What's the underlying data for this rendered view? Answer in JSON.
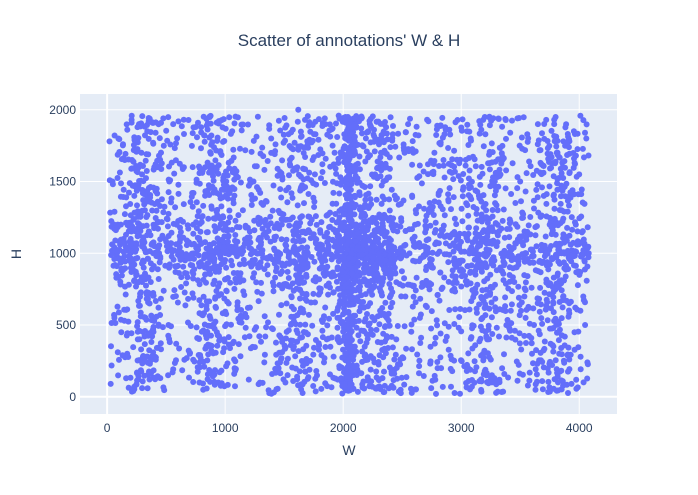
{
  "chart_data": {
    "type": "scatter",
    "title": "Scatter of annotations' W & H",
    "xlabel": "W",
    "ylabel": "H",
    "xlim": [
      -230,
      4320
    ],
    "ylim": [
      -120,
      2110
    ],
    "xticks": [
      0,
      1000,
      2000,
      3000,
      4000
    ],
    "xtick_labels": [
      "0",
      "1000",
      "2000",
      "3000",
      "4000"
    ],
    "yticks": [
      0,
      500,
      1000,
      1500,
      2000
    ],
    "ytick_labels": [
      "0",
      "500",
      "1000",
      "1500",
      "2000"
    ],
    "grid": true,
    "legend": "none",
    "marker_color": "#636efa",
    "plot_bg": "#e5ecf6",
    "grid_color": "#ffffff",
    "point_count": 4000,
    "points": {
      "x": [
        20,
        45,
        60,
        80,
        95,
        120,
        150,
        170,
        200,
        230,
        250,
        270,
        285,
        295,
        300,
        310,
        320,
        340,
        360,
        390,
        420,
        450,
        480,
        500,
        520,
        560,
        600,
        650,
        700,
        750,
        800,
        830,
        870,
        900,
        930,
        960,
        1000,
        1030,
        1060,
        1100,
        1150,
        1200,
        1240,
        1290,
        1340,
        1390,
        1440,
        1480,
        1520,
        1560,
        1600,
        1640,
        1680,
        1720,
        1760,
        1800,
        1850,
        1900,
        1950,
        1990,
        2020,
        2040,
        2050,
        2060,
        2080,
        2100,
        2140,
        2180,
        2220,
        2260,
        2300,
        2350,
        2400,
        2450,
        2500,
        2550,
        2600,
        2650,
        2700,
        2750,
        2800,
        2850,
        2900,
        2950,
        3000,
        3050,
        3100,
        3150,
        3180,
        3200,
        3230,
        3260,
        3300,
        3350,
        3400,
        3450,
        3500,
        3550,
        3600,
        3650,
        3700,
        3750,
        3780,
        3800,
        3820,
        3850,
        3880,
        3920,
        3960,
        4000,
        4030,
        4060,
        4080,
        30,
        90,
        260,
        290,
        310,
        830,
        860,
        900,
        960,
        1010,
        1540,
        1580,
        1620,
        2040,
        2060,
        2200,
        2250,
        2320,
        3160,
        3190,
        3220,
        3260,
        3790,
        3810,
        3830,
        3850,
        4010,
        4050,
        140,
        440,
        730,
        1120,
        1380,
        1700,
        1960,
        2480,
        2700,
        3000,
        3350,
        3600,
        3960,
        110,
        370,
        640,
        1010,
        1280,
        1860,
        2150,
        2520,
        2830,
        3080,
        3420,
        3700,
        4050
      ],
      "y": [
        1780,
        1500,
        1200,
        990,
        1800,
        450,
        1650,
        300,
        1100,
        70,
        850,
        1900,
        560,
        1550,
        250,
        940,
        1300,
        1850,
        650,
        1000,
        1450,
        130,
        1750,
        1080,
        500,
        1900,
        990,
        1600,
        300,
        1000,
        1250,
        850,
        1950,
        990,
        450,
        1700,
        1000,
        650,
        1850,
        980,
        1300,
        120,
        1500,
        1000,
        420,
        1800,
        960,
        1200,
        1020,
        700,
        1000,
        1450,
        980,
        250,
        1550,
        1000,
        1900,
        990,
        600,
        1300,
        80,
        1950,
        1550,
        500,
        1000,
        1400,
        980,
        1150,
        1020,
        850,
        1000,
        1700,
        980,
        400,
        1000,
        1900,
        1050,
        550,
        990,
        1300,
        200,
        1650,
        990,
        1050,
        950,
        1850,
        1000,
        1400,
        550,
        1950,
        1000,
        150,
        1050,
        1650,
        980,
        800,
        1500,
        1000,
        300,
        1900,
        1020,
        1200,
        650,
        1950,
        100,
        1000,
        1750,
        1400,
        450,
        1550,
        990,
        1800,
        1000,
        90,
        1200,
        400,
        1700,
        900,
        1600,
        1000,
        950,
        1050,
        1000,
        990,
        1030,
        2000,
        60,
        1000,
        980,
        1010,
        1700,
        900,
        1100,
        400,
        100,
        1200,
        1700,
        300,
        1300,
        600,
        1000,
        1100,
        1000,
        1200,
        1000,
        980,
        1000,
        1020,
        990,
        1000,
        1010,
        1000,
        980,
        1000,
        1060,
        800,
        1600,
        1500,
        900,
        400,
        1300,
        1700,
        200,
        1800,
        600,
        1400,
        500
      ]
    }
  }
}
